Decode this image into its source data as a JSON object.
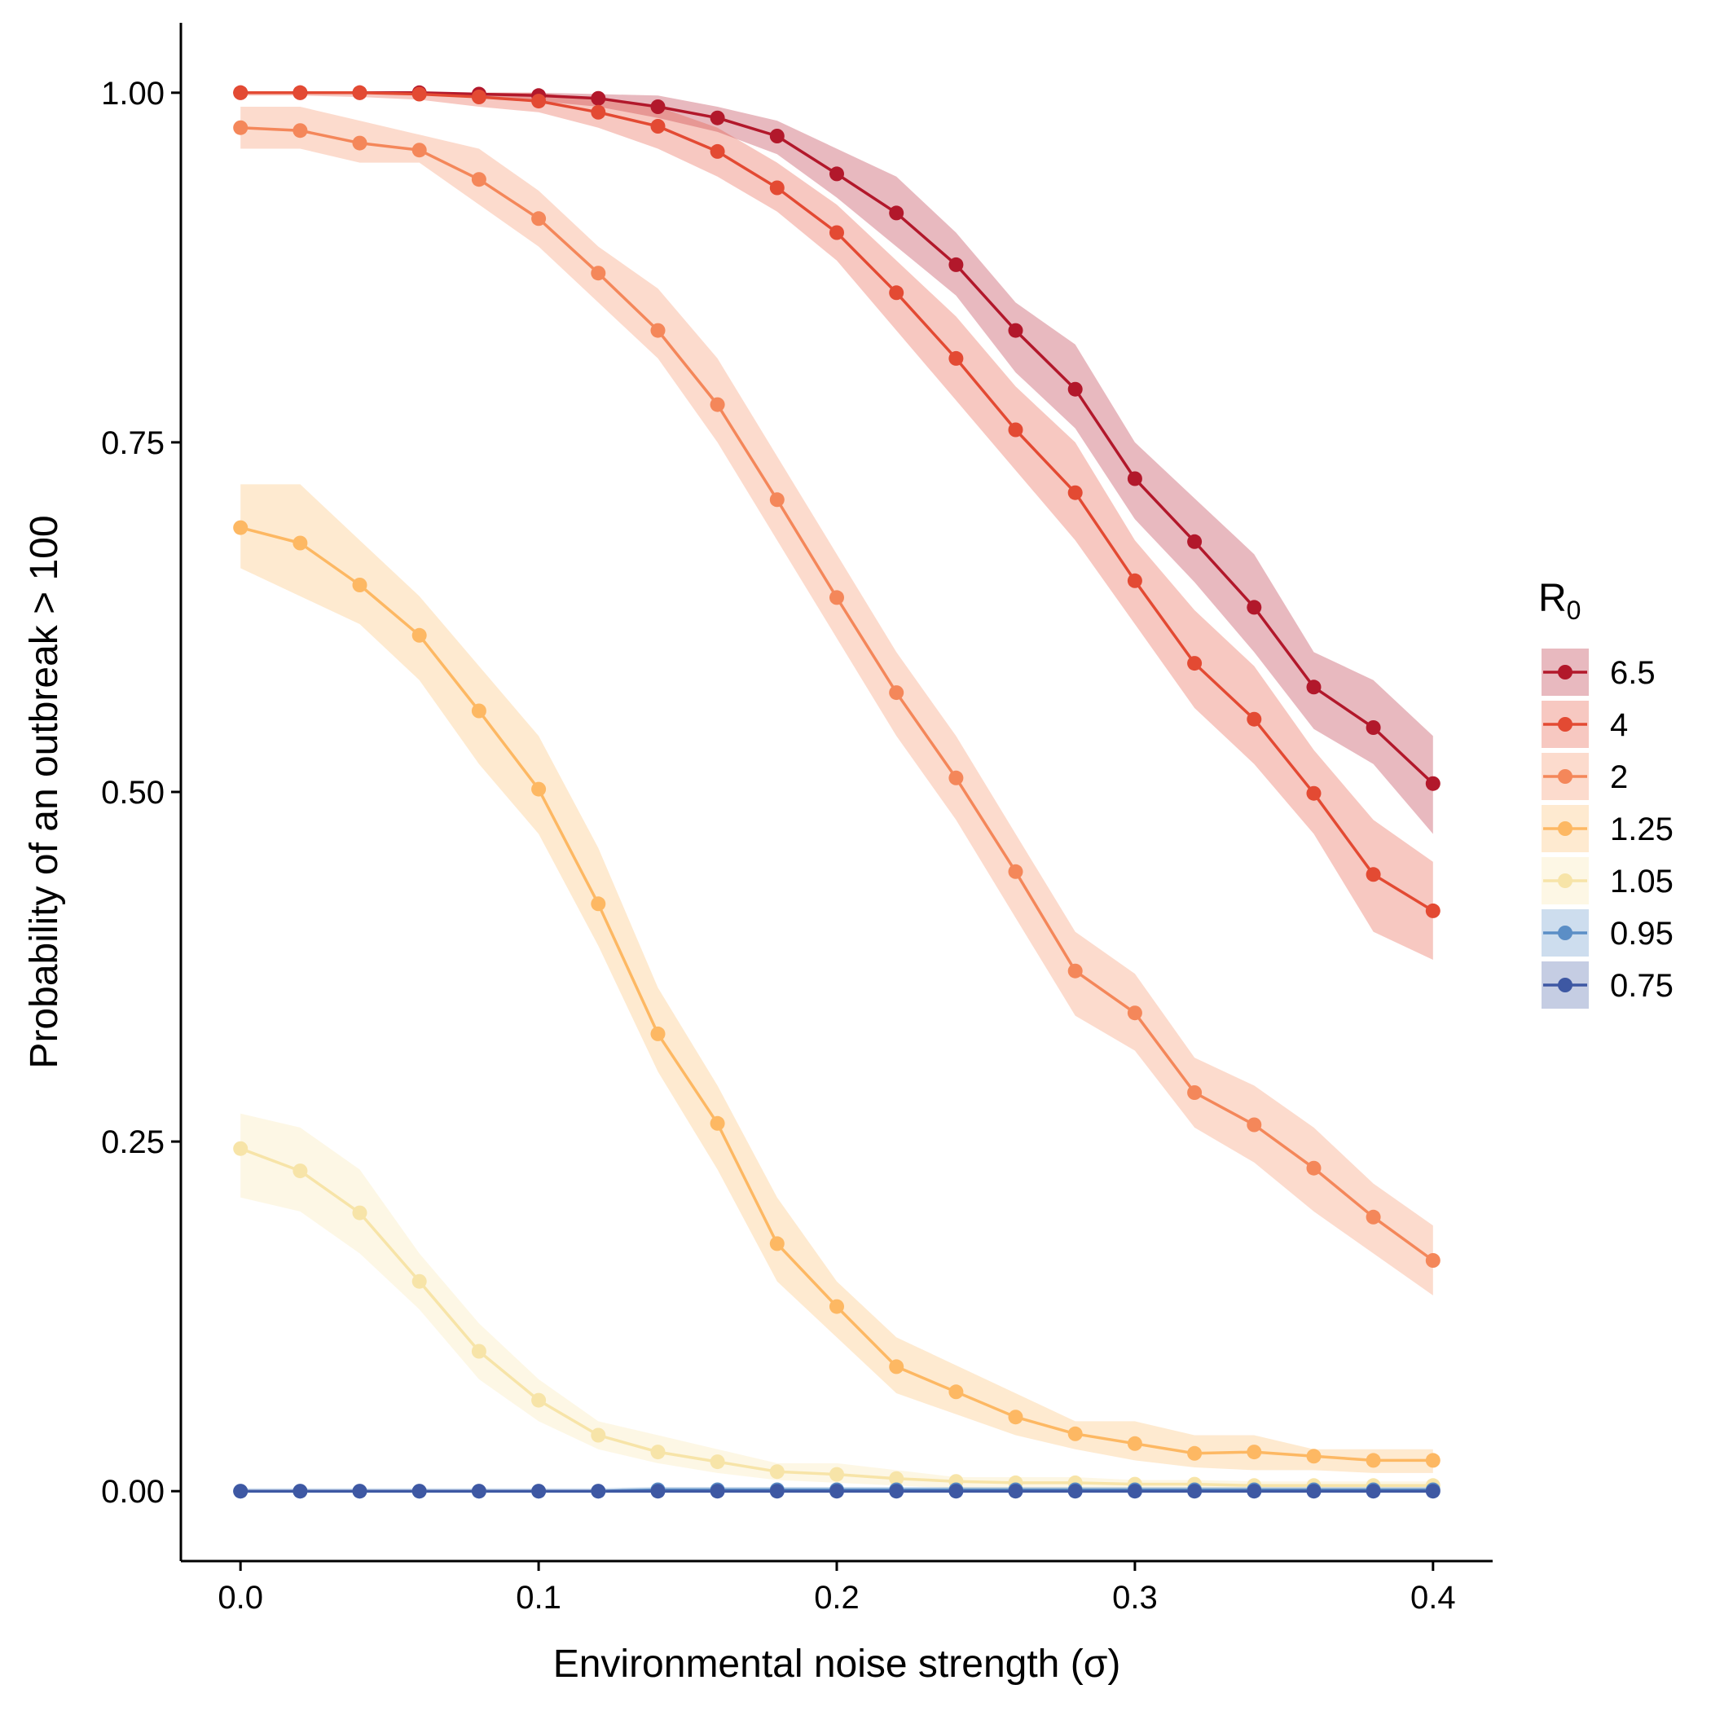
{
  "chart_data": {
    "type": "line",
    "xlabel": "Environmental noise strength (σ)",
    "ylabel": "Probability of an outbreak > 100",
    "xlim": [
      -0.02,
      0.42
    ],
    "ylim": [
      -0.05,
      1.05
    ],
    "x_ticks": [
      0.0,
      0.1,
      0.2,
      0.3,
      0.4
    ],
    "x_tick_labels": [
      "0.0",
      "0.1",
      "0.2",
      "0.3",
      "0.4"
    ],
    "y_ticks": [
      0.0,
      0.25,
      0.5,
      0.75,
      1.0
    ],
    "y_tick_labels": [
      "0.00",
      "0.25",
      "0.50",
      "0.75",
      "1.00"
    ],
    "grid": false,
    "legend": {
      "title": "R",
      "title_subscript": "0",
      "position": "right"
    },
    "x": [
      0.0,
      0.02,
      0.04,
      0.06,
      0.08,
      0.1,
      0.12,
      0.14,
      0.16,
      0.18,
      0.2,
      0.22,
      0.24,
      0.26,
      0.28,
      0.3,
      0.32,
      0.34,
      0.36,
      0.38,
      0.4
    ],
    "series": [
      {
        "name": "6.5",
        "color": "#b2182b",
        "values": [
          1.0,
          1.0,
          1.0,
          1.0,
          0.999,
          0.998,
          0.996,
          0.99,
          0.982,
          0.969,
          0.942,
          0.914,
          0.877,
          0.83,
          0.788,
          0.724,
          0.679,
          0.632,
          0.575,
          0.546,
          0.506
        ],
        "lower": [
          1.0,
          1.0,
          1.0,
          0.999,
          0.996,
          0.994,
          0.99,
          0.982,
          0.972,
          0.956,
          0.925,
          0.89,
          0.855,
          0.8,
          0.76,
          0.695,
          0.65,
          0.6,
          0.545,
          0.52,
          0.47
        ],
        "upper": [
          1.0,
          1.0,
          1.0,
          1.0,
          1.0,
          1.0,
          0.999,
          0.998,
          0.99,
          0.98,
          0.96,
          0.94,
          0.9,
          0.85,
          0.82,
          0.75,
          0.71,
          0.67,
          0.6,
          0.58,
          0.54
        ]
      },
      {
        "name": "4",
        "color": "#e34a33",
        "values": [
          1.0,
          1.0,
          1.0,
          0.999,
          0.997,
          0.994,
          0.986,
          0.976,
          0.958,
          0.932,
          0.9,
          0.857,
          0.81,
          0.759,
          0.714,
          0.651,
          0.592,
          0.552,
          0.499,
          0.441,
          0.415
        ],
        "lower": [
          0.998,
          0.998,
          0.997,
          0.995,
          0.99,
          0.986,
          0.975,
          0.96,
          0.94,
          0.915,
          0.88,
          0.83,
          0.78,
          0.73,
          0.68,
          0.62,
          0.56,
          0.52,
          0.47,
          0.4,
          0.38
        ],
        "upper": [
          1.0,
          1.0,
          1.0,
          1.0,
          1.0,
          1.0,
          0.995,
          0.99,
          0.975,
          0.95,
          0.92,
          0.88,
          0.84,
          0.79,
          0.75,
          0.68,
          0.63,
          0.59,
          0.53,
          0.48,
          0.45
        ]
      },
      {
        "name": "2",
        "color": "#f4875a",
        "values": [
          0.975,
          0.973,
          0.964,
          0.959,
          0.938,
          0.91,
          0.871,
          0.83,
          0.777,
          0.709,
          0.639,
          0.571,
          0.51,
          0.443,
          0.372,
          0.342,
          0.285,
          0.262,
          0.231,
          0.196,
          0.165
        ],
        "lower": [
          0.96,
          0.96,
          0.95,
          0.95,
          0.92,
          0.89,
          0.85,
          0.81,
          0.75,
          0.68,
          0.61,
          0.54,
          0.48,
          0.41,
          0.34,
          0.315,
          0.26,
          0.235,
          0.2,
          0.17,
          0.14
        ],
        "upper": [
          0.99,
          0.99,
          0.98,
          0.97,
          0.96,
          0.93,
          0.89,
          0.86,
          0.81,
          0.74,
          0.67,
          0.6,
          0.54,
          0.47,
          0.4,
          0.37,
          0.31,
          0.29,
          0.26,
          0.22,
          0.19
        ]
      },
      {
        "name": "1.25",
        "color": "#fdb863",
        "values": [
          0.689,
          0.678,
          0.648,
          0.612,
          0.558,
          0.502,
          0.42,
          0.327,
          0.263,
          0.177,
          0.132,
          0.089,
          0.071,
          0.053,
          0.041,
          0.034,
          0.027,
          0.028,
          0.025,
          0.022,
          0.022
        ],
        "lower": [
          0.66,
          0.64,
          0.62,
          0.58,
          0.52,
          0.47,
          0.39,
          0.3,
          0.23,
          0.15,
          0.11,
          0.07,
          0.055,
          0.04,
          0.03,
          0.022,
          0.017,
          0.015,
          0.015,
          0.013,
          0.013
        ],
        "upper": [
          0.72,
          0.72,
          0.68,
          0.64,
          0.59,
          0.54,
          0.46,
          0.36,
          0.29,
          0.21,
          0.15,
          0.11,
          0.09,
          0.07,
          0.05,
          0.05,
          0.04,
          0.04,
          0.03,
          0.03,
          0.03
        ]
      },
      {
        "name": "1.05",
        "color": "#f7e4a8",
        "values": [
          0.245,
          0.229,
          0.199,
          0.15,
          0.1,
          0.065,
          0.04,
          0.028,
          0.021,
          0.014,
          0.012,
          0.009,
          0.007,
          0.006,
          0.006,
          0.005,
          0.005,
          0.004,
          0.004,
          0.004,
          0.004
        ],
        "lower": [
          0.21,
          0.2,
          0.17,
          0.13,
          0.08,
          0.05,
          0.03,
          0.02,
          0.013,
          0.008,
          0.006,
          0.004,
          0.002,
          0.002,
          0.002,
          0.001,
          0.001,
          0.001,
          0.001,
          0.001,
          0.001
        ],
        "upper": [
          0.27,
          0.26,
          0.23,
          0.17,
          0.12,
          0.08,
          0.05,
          0.04,
          0.03,
          0.02,
          0.02,
          0.015,
          0.01,
          0.01,
          0.01,
          0.008,
          0.008,
          0.007,
          0.007,
          0.007,
          0.007
        ]
      },
      {
        "name": "0.95",
        "color": "#5b8ec6",
        "values": [
          0.0,
          0.0,
          0.0,
          0.0,
          0.0,
          0.0,
          0.0,
          0.001,
          0.001,
          0.001,
          0.001,
          0.001,
          0.001,
          0.001,
          0.001,
          0.001,
          0.001,
          0.001,
          0.001,
          0.001,
          0.001
        ],
        "lower": [
          0.0,
          0.0,
          0.0,
          0.0,
          0.0,
          0.0,
          0.0,
          0.0,
          0.0,
          0.0,
          0.0,
          0.0,
          0.0,
          0.0,
          0.0,
          0.0,
          0.0,
          0.0,
          0.0,
          0.0,
          0.0
        ],
        "upper": [
          0.002,
          0.002,
          0.002,
          0.002,
          0.002,
          0.002,
          0.002,
          0.003,
          0.003,
          0.003,
          0.003,
          0.003,
          0.003,
          0.003,
          0.003,
          0.003,
          0.003,
          0.003,
          0.003,
          0.003,
          0.003
        ]
      },
      {
        "name": "0.75",
        "color": "#3e58a3",
        "values": [
          0.0,
          0.0,
          0.0,
          0.0,
          0.0,
          0.0,
          0.0,
          0.0,
          0.0,
          0.0,
          0.0,
          0.0,
          0.0,
          0.0,
          0.0,
          0.0,
          0.0,
          0.0,
          0.0,
          0.0,
          0.0
        ],
        "lower": [
          0.0,
          0.0,
          0.0,
          0.0,
          0.0,
          0.0,
          0.0,
          0.0,
          0.0,
          0.0,
          0.0,
          0.0,
          0.0,
          0.0,
          0.0,
          0.0,
          0.0,
          0.0,
          0.0,
          0.0,
          0.0
        ],
        "upper": [
          0.001,
          0.001,
          0.001,
          0.001,
          0.001,
          0.001,
          0.001,
          0.001,
          0.001,
          0.001,
          0.001,
          0.001,
          0.001,
          0.001,
          0.001,
          0.001,
          0.001,
          0.001,
          0.001,
          0.001,
          0.001
        ]
      }
    ]
  }
}
